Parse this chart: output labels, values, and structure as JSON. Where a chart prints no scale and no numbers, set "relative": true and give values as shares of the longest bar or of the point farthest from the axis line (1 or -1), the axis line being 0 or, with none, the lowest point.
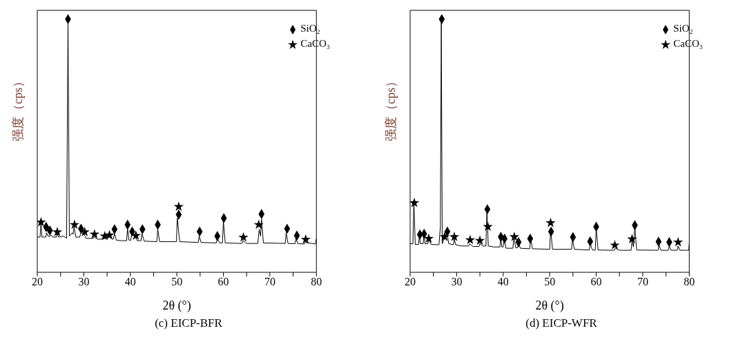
{
  "chart_data": [
    {
      "type": "line",
      "title": "(c) EICP-BFR",
      "xlabel": "2θ (°)",
      "ylabel": "强度（cps）",
      "relative": true,
      "legend": "top right",
      "grid": false,
      "xlim": [
        20,
        80
      ],
      "xticks": [
        20,
        {
          "value": 25,
          "label": null
        },
        30,
        {
          "value": 35,
          "label": null
        },
        40,
        {
          "value": 45,
          "label": null
        },
        50,
        {
          "value": 55,
          "label": null
        },
        60,
        {
          "value": 65,
          "label": null
        },
        70,
        {
          "value": 75,
          "label": null
        },
        80
      ],
      "series": [
        {
          "color": "#000000",
          "marker": "none",
          "x": [
            20.0,
            20.6,
            20.8,
            21.0,
            21.8,
            22.0,
            22.3,
            22.8,
            23.0,
            23.3,
            24.1,
            24.3,
            24.6,
            25.7,
            26.3,
            26.6,
            26.9,
            27.5,
            27.7,
            27.9,
            28.3,
            29.1,
            29.4,
            30.0,
            30.5,
            32.0,
            32.3,
            33.0,
            34.8,
            35.5,
            36.3,
            36.6,
            37.0,
            38.0,
            39.2,
            39.4,
            39.7,
            40.1,
            40.3,
            41.0,
            41.5,
            42.3,
            42.5,
            43.0,
            45.7,
            45.9,
            46.3,
            49.9,
            50.1,
            50.6,
            54.6,
            54.8,
            55.2,
            58.5,
            58.7,
            59.2,
            59.8,
            60.0,
            60.4,
            64.0,
            64.2,
            65.0,
            67.4,
            67.7,
            68.0,
            68.2,
            68.6,
            73.3,
            73.5,
            73.9,
            75.4,
            75.6,
            76.0,
            77.4,
            77.6,
            79.8,
            80.0
          ],
          "values": [
            0.139,
            0.139,
            0.201,
            0.139,
            0.139,
            0.156,
            0.143,
            0.143,
            0.147,
            0.139,
            0.139,
            0.152,
            0.139,
            0.143,
            0.134,
            0.987,
            0.143,
            0.156,
            0.15,
            0.179,
            0.139,
            0.139,
            0.156,
            0.152,
            0.134,
            0.134,
            0.139,
            0.13,
            0.134,
            0.139,
            0.13,
            0.152,
            0.127,
            0.125,
            0.125,
            0.174,
            0.127,
            0.127,
            0.152,
            0.143,
            0.125,
            0.125,
            0.152,
            0.123,
            0.121,
            0.17,
            0.121,
            0.121,
            0.214,
            0.121,
            0.118,
            0.143,
            0.118,
            0.116,
            0.134,
            0.116,
            0.116,
            0.201,
            0.116,
            0.114,
            0.125,
            0.114,
            0.114,
            0.17,
            0.143,
            0.21,
            0.116,
            0.114,
            0.156,
            0.114,
            0.113,
            0.134,
            0.113,
            0.112,
            0.118,
            0.112,
            0.134
          ]
        },
        {
          "type": "scatter",
          "name": "SiO₂",
          "color": "#000000",
          "marker": "diamond",
          "x": [
            26.6,
            21.9,
            22.7,
            29.4,
            36.6,
            39.4,
            40.4,
            42.6,
            45.9,
            50.4,
            54.9,
            58.7,
            60.1,
            68.2,
            73.7,
            75.8
          ],
          "values": [
            1.0,
            0.179,
            0.165,
            0.172,
            0.17,
            0.188,
            0.161,
            0.17,
            0.188,
            0.228,
            0.161,
            0.143,
            0.214,
            0.23,
            0.172,
            0.145
          ]
        },
        {
          "type": "scatter",
          "name": "CaCO₃",
          "color": "#000000",
          "marker": "star",
          "x": [
            20.8,
            24.3,
            28.0,
            30.2,
            32.3,
            34.5,
            35.5,
            41.2,
            50.4,
            64.3,
            67.6,
            77.7
          ],
          "values": [
            0.198,
            0.159,
            0.188,
            0.159,
            0.15,
            0.143,
            0.147,
            0.145,
            0.259,
            0.138,
            0.188,
            0.13
          ]
        }
      ]
    },
    {
      "type": "line",
      "title": "(d) EICP-WFR",
      "xlabel": "2θ (°)",
      "ylabel": "强度（cps）",
      "relative": true,
      "legend": "top right",
      "grid": false,
      "xlim": [
        20,
        80
      ],
      "xticks": [
        20,
        {
          "value": 25,
          "label": null
        },
        30,
        {
          "value": 35,
          "label": null
        },
        40,
        {
          "value": 45,
          "label": null
        },
        50,
        {
          "value": 55,
          "label": null
        },
        60,
        {
          "value": 65,
          "label": null
        },
        70,
        {
          "value": 75,
          "label": null
        },
        80
      ],
      "series": [
        {
          "color": "#000000",
          "marker": "none",
          "x": [
            20.0,
            20.6,
            20.8,
            21.1,
            21.8,
            22.0,
            22.2,
            22.8,
            23.0,
            23.2,
            23.8,
            24.0,
            24.5,
            26.2,
            26.5,
            26.7,
            26.9,
            27.5,
            27.9,
            28.3,
            29.3,
            29.5,
            29.8,
            31.0,
            32.6,
            32.8,
            33.5,
            34.8,
            35.0,
            35.6,
            36.3,
            36.5,
            36.8,
            38.0,
            39.3,
            39.5,
            39.7,
            40.0,
            40.2,
            40.6,
            42.1,
            42.3,
            42.7,
            43.1,
            43.3,
            43.7,
            45.7,
            45.9,
            46.3,
            50.0,
            50.2,
            50.6,
            54.7,
            54.9,
            55.3,
            58.5,
            58.7,
            59.2,
            59.8,
            60.0,
            60.4,
            63.9,
            64.1,
            65.0,
            67.5,
            67.7,
            68.0,
            68.3,
            68.7,
            73.3,
            73.5,
            73.9,
            75.5,
            75.7,
            76.1,
            77.4,
            77.6,
            78.0,
            79.9,
            80.0
          ],
          "values": [
            0.113,
            0.113,
            0.286,
            0.11,
            0.11,
            0.149,
            0.113,
            0.113,
            0.149,
            0.113,
            0.113,
            0.131,
            0.11,
            0.109,
            0.18,
            0.989,
            0.113,
            0.14,
            0.157,
            0.113,
            0.109,
            0.131,
            0.109,
            0.104,
            0.104,
            0.113,
            0.102,
            0.102,
            0.113,
            0.104,
            0.104,
            0.255,
            0.104,
            0.1,
            0.1,
            0.14,
            0.1,
            0.1,
            0.135,
            0.095,
            0.095,
            0.14,
            0.097,
            0.097,
            0.113,
            0.095,
            0.093,
            0.131,
            0.093,
            0.091,
            0.171,
            0.091,
            0.091,
            0.131,
            0.091,
            0.088,
            0.113,
            0.088,
            0.088,
            0.175,
            0.088,
            0.087,
            0.095,
            0.087,
            0.087,
            0.127,
            0.1,
            0.18,
            0.088,
            0.087,
            0.109,
            0.087,
            0.087,
            0.104,
            0.087,
            0.087,
            0.104,
            0.087,
            0.087,
            0.113
          ]
        },
        {
          "type": "scatter",
          "name": "SiO₂",
          "color": "#000000",
          "marker": "diamond",
          "x": [
            26.8,
            22.1,
            23.0,
            28.0,
            36.6,
            39.5,
            40.3,
            43.3,
            45.8,
            50.3,
            55.0,
            58.7,
            60.0,
            68.3,
            73.4,
            75.7
          ],
          "values": [
            1.0,
            0.149,
            0.152,
            0.161,
            0.249,
            0.14,
            0.133,
            0.119,
            0.133,
            0.161,
            0.139,
            0.122,
            0.18,
            0.186,
            0.121,
            0.119
          ]
        },
        {
          "type": "scatter",
          "name": "CaCO₃",
          "color": "#000000",
          "marker": "star",
          "x": [
            20.9,
            24.0,
            27.4,
            29.5,
            32.9,
            35.0,
            36.7,
            42.4,
            50.2,
            64.0,
            67.7,
            77.6
          ],
          "values": [
            0.274,
            0.133,
            0.14,
            0.14,
            0.128,
            0.125,
            0.18,
            0.14,
            0.195,
            0.107,
            0.131,
            0.119
          ]
        }
      ]
    }
  ]
}
